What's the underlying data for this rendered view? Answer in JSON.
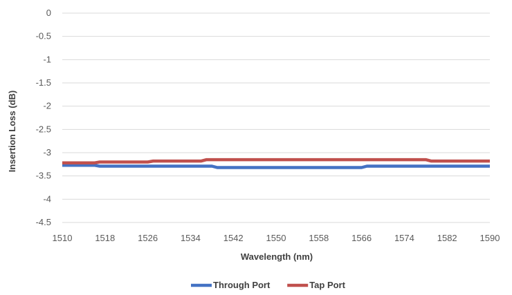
{
  "chart_data": {
    "type": "line",
    "title": "",
    "xlabel": "Wavelength (nm)",
    "ylabel": "Insertion Loss (dB)",
    "xlim": [
      1510,
      1590
    ],
    "ylim": [
      -4.5,
      0
    ],
    "x_ticks": [
      1510,
      1518,
      1526,
      1534,
      1542,
      1550,
      1558,
      1566,
      1574,
      1582,
      1590
    ],
    "y_ticks": [
      0,
      -0.5,
      -1,
      -1.5,
      -2,
      -2.5,
      -3,
      -3.5,
      -4,
      -4.5
    ],
    "x_tick_labels": [
      "1510",
      "1518",
      "1526",
      "1534",
      "1542",
      "1550",
      "1558",
      "1566",
      "1574",
      "1582",
      "1590"
    ],
    "y_tick_labels": [
      "0",
      "-0.5",
      "-1",
      "-1.5",
      "-2",
      "-2.5",
      "-3",
      "-3.5",
      "-4",
      "-4.5"
    ],
    "grid": true,
    "legend_position": "bottom",
    "series": [
      {
        "name": "Through Port",
        "color": "#4472C4",
        "x": [
          1510,
          1516,
          1517,
          1529,
          1530,
          1538,
          1539,
          1566,
          1567,
          1590
        ],
        "y": [
          -3.27,
          -3.27,
          -3.29,
          -3.29,
          -3.29,
          -3.29,
          -3.32,
          -3.32,
          -3.29,
          -3.29
        ]
      },
      {
        "name": "Tap Port",
        "color": "#C0504D",
        "x": [
          1510,
          1516,
          1517,
          1526,
          1527,
          1536,
          1537,
          1578,
          1579,
          1590
        ],
        "y": [
          -3.22,
          -3.22,
          -3.2,
          -3.2,
          -3.18,
          -3.18,
          -3.15,
          -3.15,
          -3.18,
          -3.18
        ]
      }
    ]
  }
}
